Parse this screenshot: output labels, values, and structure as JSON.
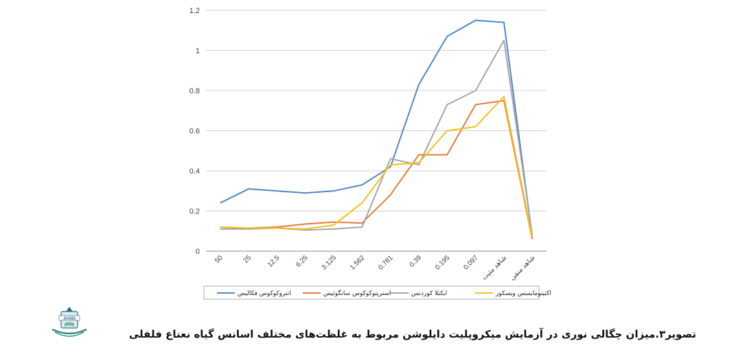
{
  "chart_data": {
    "type": "line",
    "categories": [
      "50",
      "25",
      "12.5",
      "6.25",
      "3.125",
      "1.562",
      "0.781",
      "0.39",
      "0.195",
      "0.097",
      "شاهد مثبت",
      "شاهد منفی"
    ],
    "ylim": [
      0,
      1.2
    ],
    "yticks": [
      "0",
      "0.2",
      "0.4",
      "0.6",
      "0.8",
      "1",
      "1.2"
    ],
    "grid": true,
    "legend_position": "bottom",
    "series": [
      {
        "name": "انتروکوکوس فکالیس",
        "color": "#4e86c6",
        "values": [
          0.24,
          0.31,
          0.3,
          0.29,
          0.3,
          0.33,
          0.42,
          0.83,
          1.07,
          1.15,
          1.14,
          0.07
        ]
      },
      {
        "name": "استرپتوکوکوس سانگوئیس",
        "color": "#e57a3b",
        "values": [
          0.11,
          0.115,
          0.12,
          0.135,
          0.145,
          0.14,
          0.28,
          0.48,
          0.48,
          0.73,
          0.75,
          0.06
        ]
      },
      {
        "name": "ایکنلا کوردنس",
        "color": "#a5a5a5",
        "values": [
          0.11,
          0.11,
          0.115,
          0.105,
          0.11,
          0.12,
          0.46,
          0.43,
          0.73,
          0.8,
          1.05,
          0.08
        ]
      },
      {
        "name": "اکتینومایسس ویسکوز",
        "color": "#f5c018",
        "values": [
          0.12,
          0.115,
          0.115,
          0.11,
          0.13,
          0.24,
          0.43,
          0.44,
          0.6,
          0.62,
          0.77,
          0.07
        ]
      }
    ]
  },
  "caption": "تصویر۳.میزان چگالی نوری در آزمایش میکروپلیت دایلوشن مربوط به غلظت‌های مختلف اسانس گیاه نعناع فلفلی",
  "logo": {
    "text": "JIAMS",
    "icon": "journal-logo-icon"
  }
}
